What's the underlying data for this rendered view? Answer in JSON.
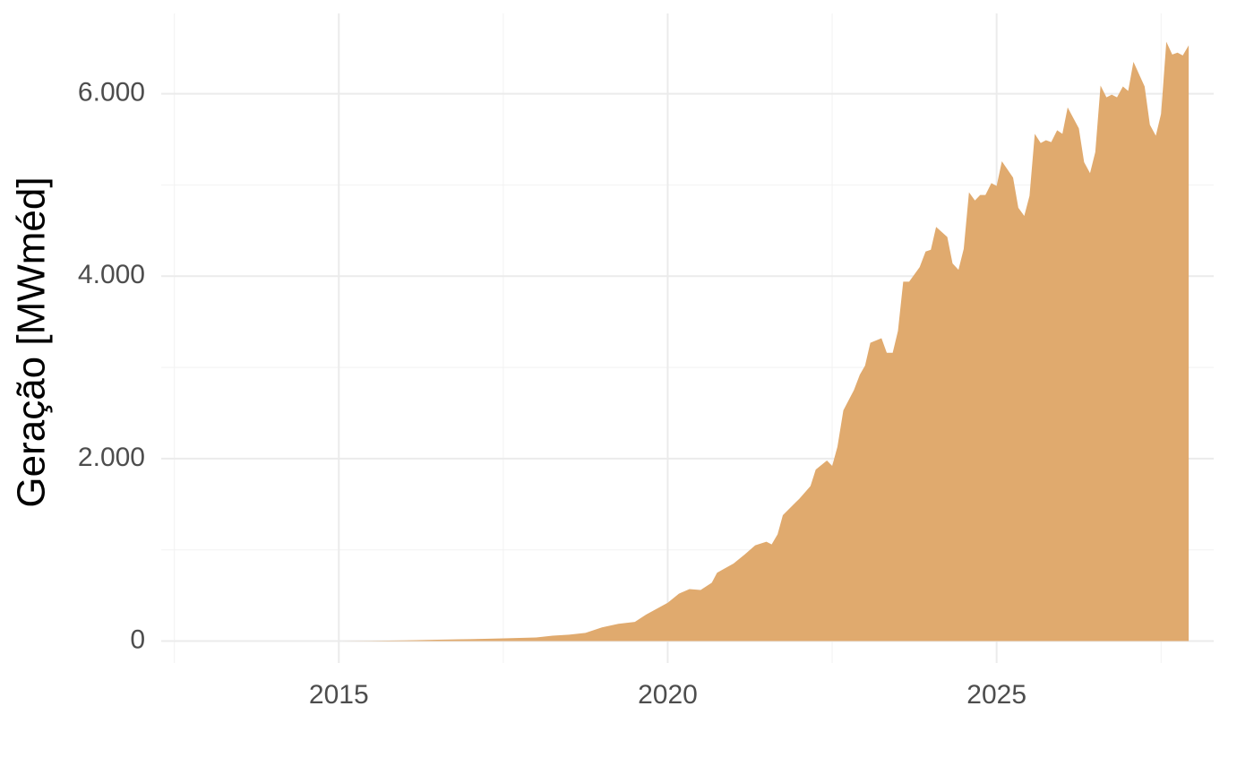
{
  "chart_data": {
    "type": "area",
    "y_label": "Geração [MWméd]",
    "color": "#e0aa6e",
    "grid": true,
    "xlim": [
      2012.3,
      2028.3
    ],
    "xticks": [
      2015,
      2020,
      2025
    ],
    "ylim": [
      -240,
      6880
    ],
    "yticks": [
      0,
      {
        "value": 2000,
        "label": "2.000"
      },
      {
        "value": 4000,
        "label": "4.000"
      },
      {
        "value": 6000,
        "label": "6.000"
      }
    ],
    "x": [
      2013.0,
      2015.0,
      2015.5,
      2016.0,
      2016.5,
      2017.0,
      2017.5,
      2018.0,
      2018.25,
      2018.5,
      2018.75,
      2019.0,
      2019.25,
      2019.5,
      2019.67,
      2020.0,
      2020.17,
      2020.33,
      2020.5,
      2020.67,
      2020.75,
      2021.0,
      2021.17,
      2021.33,
      2021.5,
      2021.58,
      2021.67,
      2021.75,
      2022.0,
      2022.17,
      2022.25,
      2022.42,
      2022.5,
      2022.58,
      2022.67,
      2022.83,
      2022.92,
      2023.0,
      2023.08,
      2023.25,
      2023.33,
      2023.42,
      2023.5,
      2023.58,
      2023.67,
      2023.83,
      2023.92,
      2024.0,
      2024.08,
      2024.25,
      2024.33,
      2024.42,
      2024.5,
      2024.58,
      2024.67,
      2024.75,
      2024.83,
      2024.92,
      2025.0,
      2025.08,
      2025.25,
      2025.33,
      2025.42,
      2025.5,
      2025.58,
      2025.67,
      2025.75,
      2025.83,
      2025.92,
      2026.0,
      2026.08,
      2026.25,
      2026.33,
      2026.42,
      2026.5,
      2026.58,
      2026.67,
      2026.75,
      2026.83,
      2026.92,
      2027.0,
      2027.08,
      2027.25,
      2027.33,
      2027.42,
      2027.5,
      2027.58,
      2027.67,
      2027.75,
      2027.83,
      2027.92
    ],
    "values": [
      0,
      0,
      3,
      8,
      15,
      22,
      30,
      40,
      60,
      70,
      90,
      150,
      190,
      210,
      290,
      420,
      520,
      570,
      560,
      640,
      750,
      850,
      950,
      1050,
      1090,
      1060,
      1170,
      1380,
      1560,
      1700,
      1880,
      1980,
      1920,
      2130,
      2530,
      2750,
      2920,
      3020,
      3270,
      3320,
      3160,
      3160,
      3400,
      3940,
      3940,
      4100,
      4270,
      4290,
      4540,
      4430,
      4140,
      4070,
      4300,
      4920,
      4830,
      4890,
      4890,
      5020,
      4990,
      5260,
      5080,
      4750,
      4660,
      4880,
      5560,
      5460,
      5490,
      5470,
      5600,
      5560,
      5850,
      5620,
      5250,
      5130,
      5360,
      6090,
      5960,
      5990,
      5960,
      6080,
      6030,
      6350,
      6080,
      5660,
      5540,
      5780,
      6570,
      6430,
      6450,
      6420,
      6530
    ]
  }
}
